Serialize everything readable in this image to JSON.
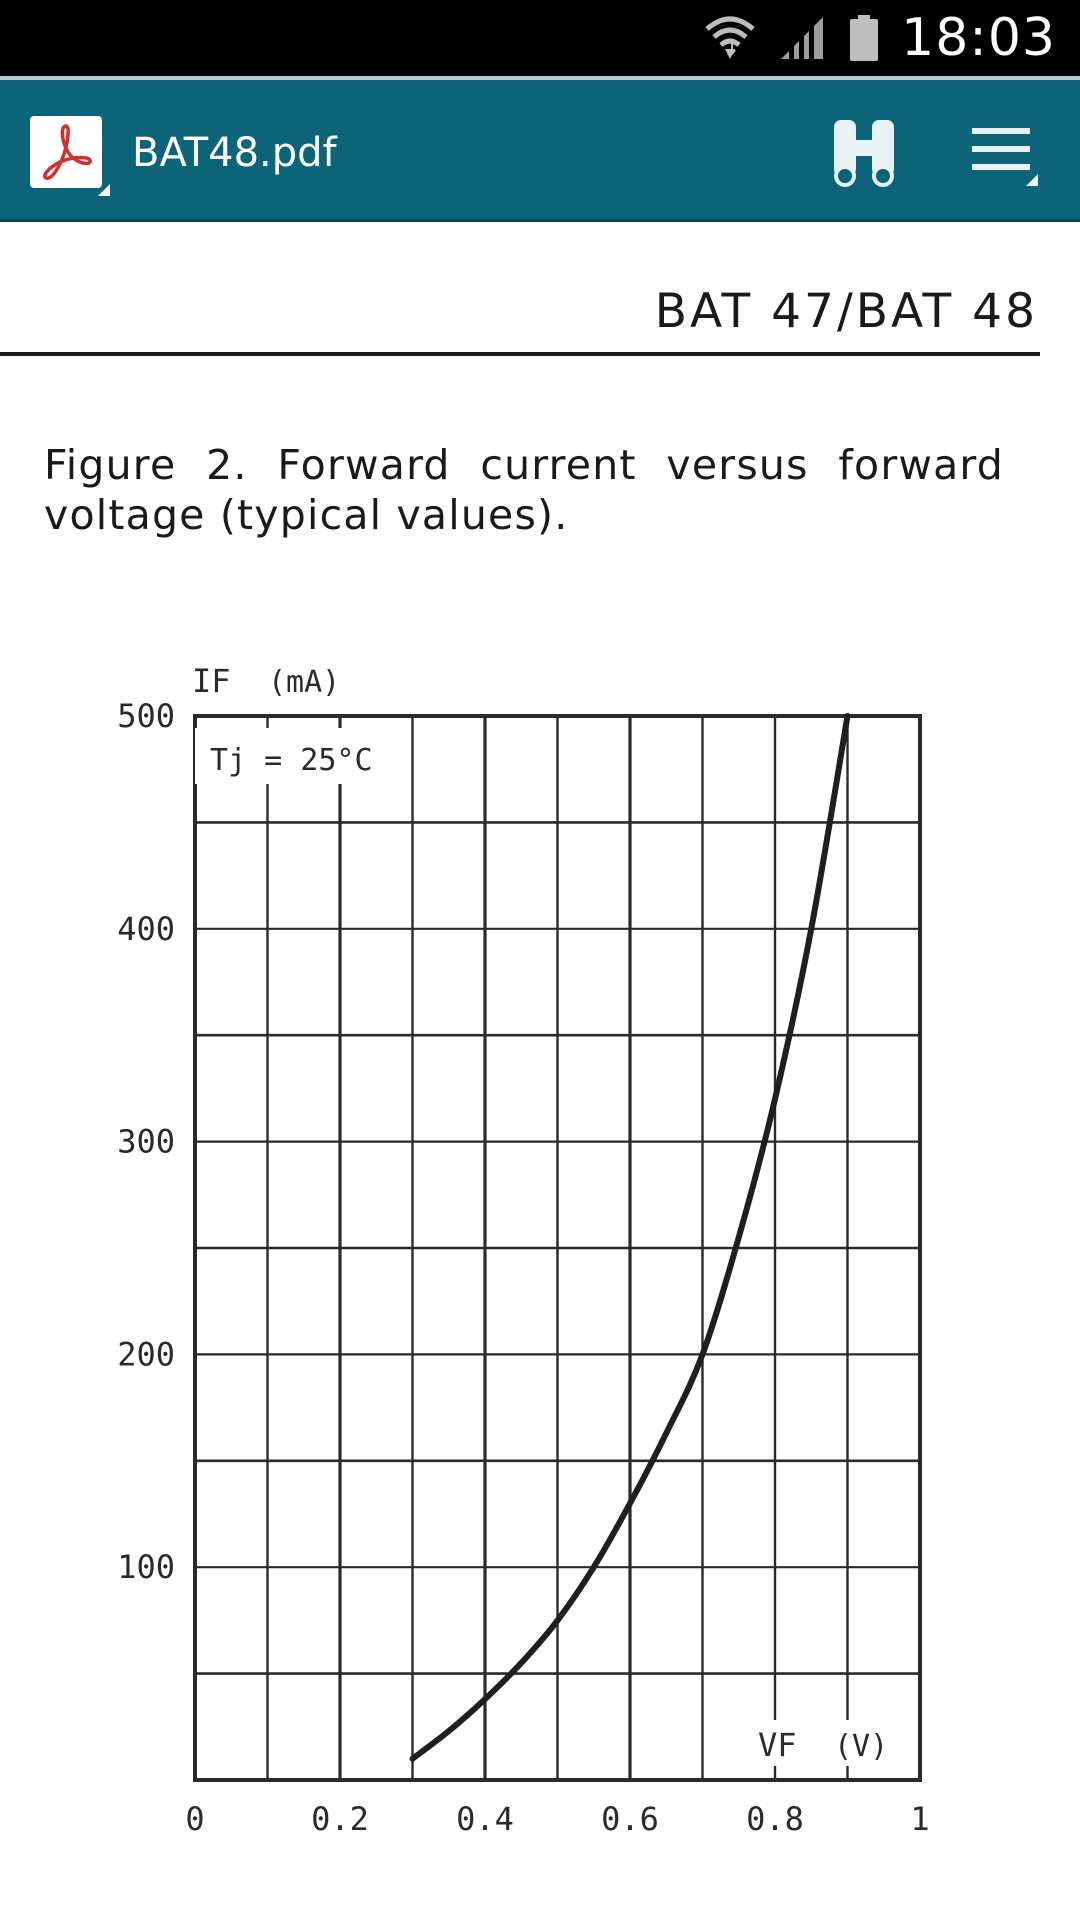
{
  "status_bar": {
    "time": "18:03",
    "icons": [
      "wifi-icon",
      "signal-icon",
      "battery-icon"
    ]
  },
  "toolbar": {
    "app_icon": "pdf-icon",
    "title": "BAT48.pdf",
    "find_icon": "binoculars-icon",
    "menu_icon": "hamburger-menu-icon",
    "background_color": "#0c6478"
  },
  "document": {
    "header": "BAT 47/BAT 48",
    "caption": "Figure 2. Forward current versus forward voltage (typical values)."
  },
  "chart_data": {
    "type": "line",
    "title": "",
    "xlabel": "VF",
    "xunit": "(V)",
    "ylabel": "IF",
    "yunit": "(mA)",
    "annotation": "Tj = 25°C",
    "xlim": [
      0,
      1
    ],
    "ylim": [
      0,
      500
    ],
    "grid": true,
    "x_major_ticks": [
      "0",
      "0.2",
      "0.4",
      "0.6",
      "0.8",
      "1"
    ],
    "x_minor_step": 0.1,
    "y_major_ticks": [
      "100",
      "200",
      "300",
      "400",
      "500"
    ],
    "y_minor_step": 50,
    "series": [
      {
        "x": [
          0.3,
          0.35,
          0.4,
          0.45,
          0.5,
          0.55,
          0.6,
          0.65,
          0.7,
          0.75,
          0.8,
          0.85,
          0.9
        ],
        "y": [
          10,
          23,
          38,
          55,
          75,
          100,
          130,
          163,
          200,
          255,
          320,
          400,
          500
        ]
      }
    ]
  }
}
